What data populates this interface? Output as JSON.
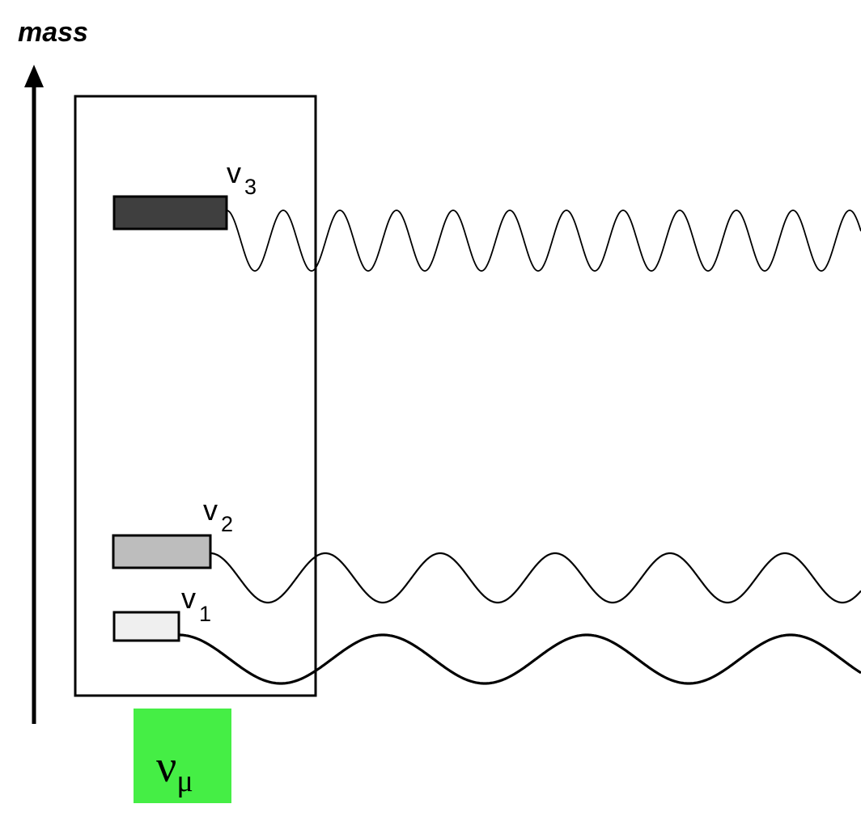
{
  "axis": {
    "label": "mass"
  },
  "mass_states": [
    {
      "id": "v3",
      "letter": "v",
      "subscript": "3",
      "fill": "#3f3f3f"
    },
    {
      "id": "v2",
      "letter": "v",
      "subscript": "2",
      "fill": "#bdbdbd"
    },
    {
      "id": "v1",
      "letter": "v",
      "subscript": "1",
      "fill": "#efefef"
    }
  ],
  "flavor": {
    "symbol": "ν",
    "subscript": "μ",
    "color": "#45ee45"
  }
}
